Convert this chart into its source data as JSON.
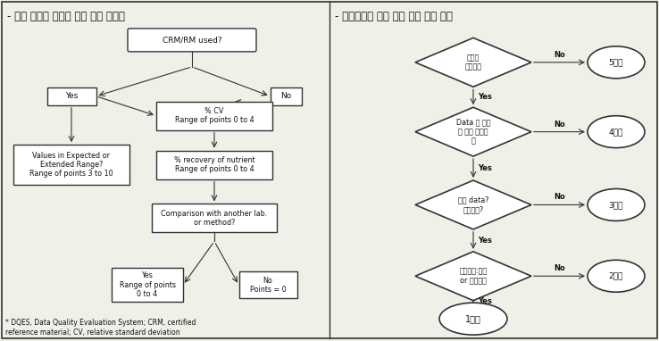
{
  "title_left": "- 미국 농무부 데이터 질적 평가 시스템",
  "title_right": "- 질병관리청 분석 자료 등급 부여 원칙",
  "footnote": "* DQES, Data Quality Evaluation System; CRM, certified\nreference material; CV, relative standard deviation",
  "bg_color": "#f0efe8",
  "box_color": "#ffffff",
  "border_color": "#333333",
  "text_color": "#111111"
}
